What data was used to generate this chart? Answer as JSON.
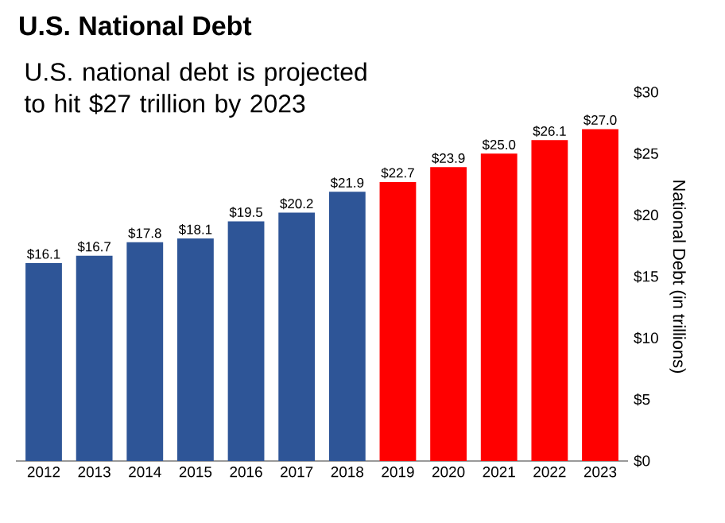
{
  "chart_data": {
    "type": "bar",
    "title": "U.S. National Debt",
    "ylabel": "National Debt (in trillions)",
    "annotations": [
      "U.S. national debt is projected to hit $27 trillion by 2023"
    ],
    "categories": [
      "2012",
      "2013",
      "2014",
      "2015",
      "2016",
      "2017",
      "2018",
      "2019",
      "2020",
      "2021",
      "2022",
      "2023"
    ],
    "values": [
      16.1,
      16.7,
      17.8,
      18.1,
      19.5,
      20.2,
      21.9,
      22.7,
      23.9,
      25.0,
      26.1,
      27.0
    ],
    "value_labels": [
      "$16.1",
      "$16.7",
      "$17.8",
      "$18.1",
      "$19.5",
      "$20.2",
      "$21.9",
      "$22.7",
      "$23.9",
      "$25.0",
      "$26.1",
      "$27.0"
    ],
    "colors": [
      "#2e5597",
      "#2e5597",
      "#2e5597",
      "#2e5597",
      "#2e5597",
      "#2e5597",
      "#2e5597",
      "#ff0000",
      "#ff0000",
      "#ff0000",
      "#ff0000",
      "#ff0000"
    ],
    "ylim": [
      0,
      30
    ],
    "yticks": [
      {
        "value": 0,
        "label": "$0"
      },
      {
        "value": 5,
        "label": "$5"
      },
      {
        "value": 10,
        "label": "$10"
      },
      {
        "value": 15,
        "label": "$15"
      },
      {
        "value": 20,
        "label": "$20"
      },
      {
        "value": 25,
        "label": "$25"
      },
      {
        "value": 30,
        "label": "$30"
      }
    ],
    "grid": false
  }
}
